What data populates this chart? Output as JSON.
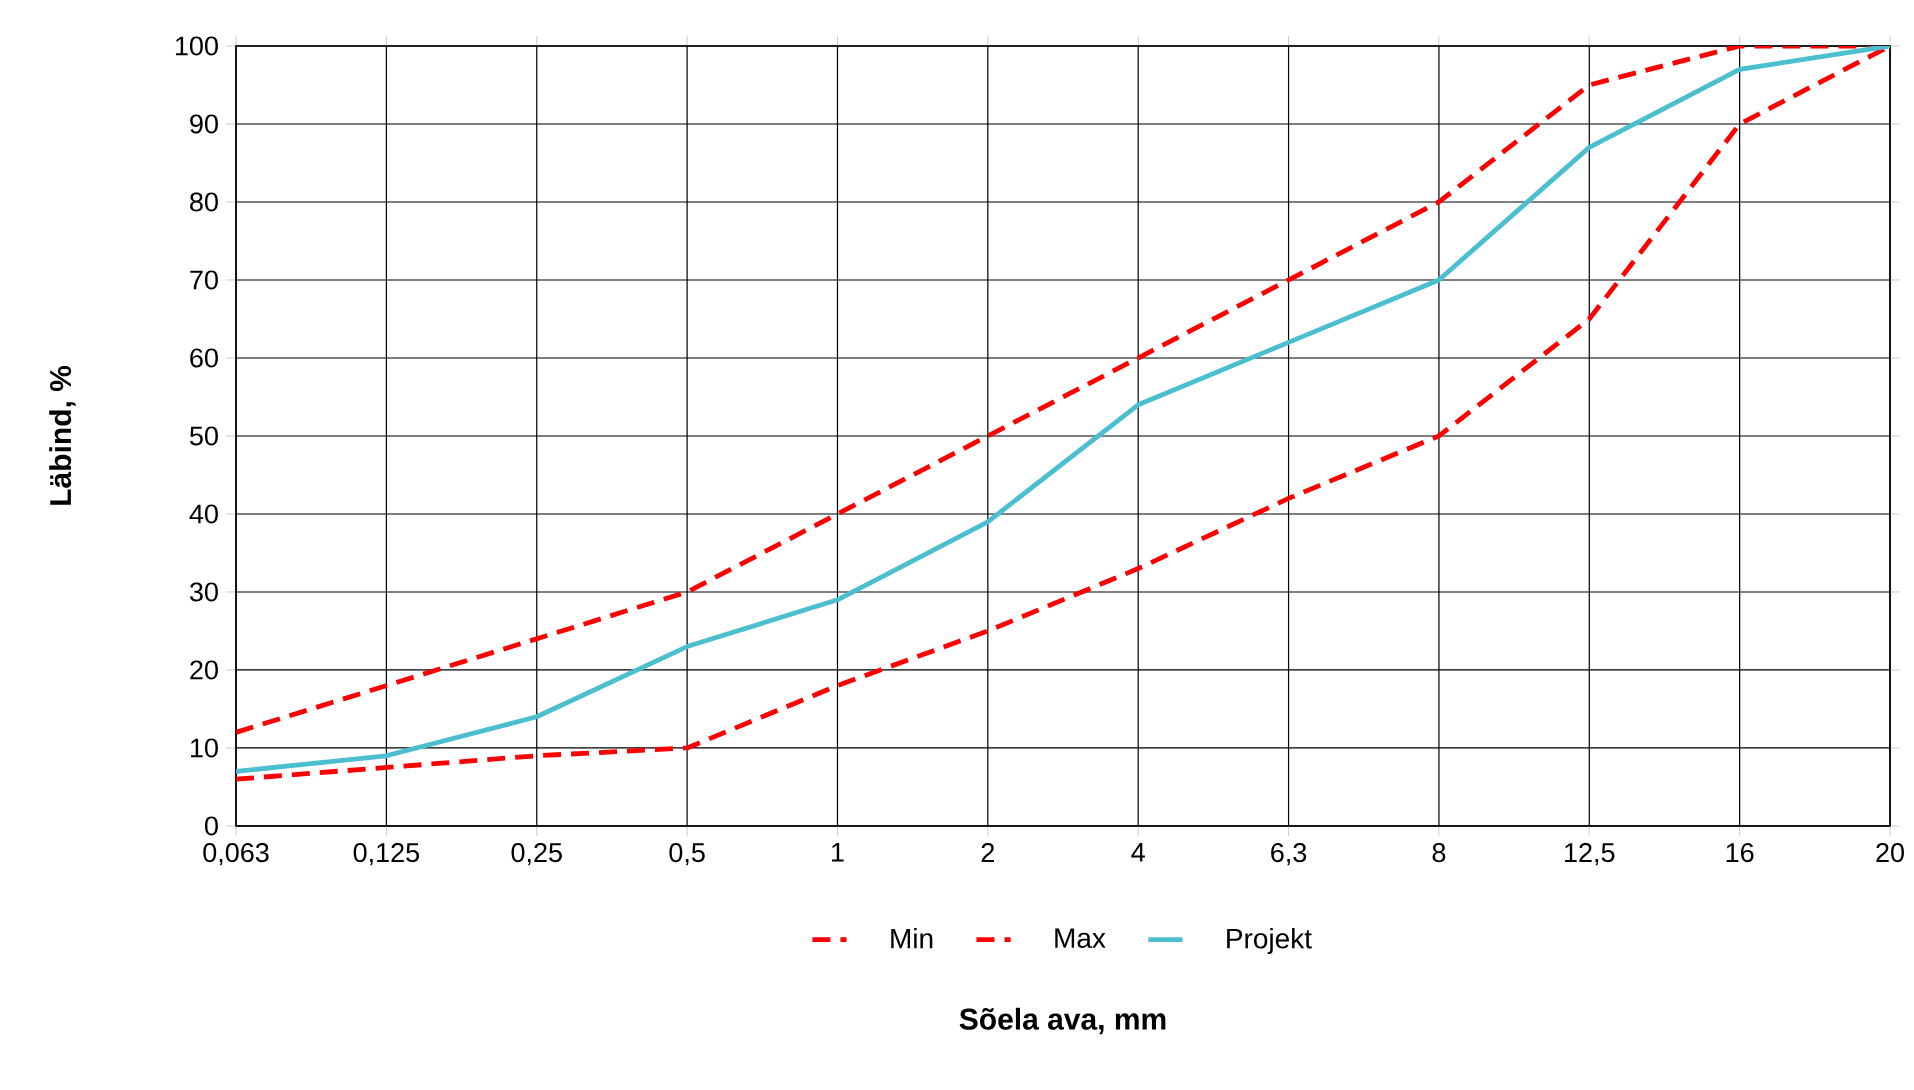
{
  "chart_data": {
    "type": "line",
    "xlabel": "Sõela ava, mm",
    "ylabel": "Läbind, %",
    "categories": [
      "0,063",
      "0,125",
      "0,25",
      "0,5",
      "1",
      "2",
      "4",
      "6,3",
      "8",
      "12,5",
      "16",
      "20"
    ],
    "series": [
      {
        "name": "Min",
        "color": "#ff0000",
        "line_style": "dashed",
        "values": [
          6,
          7.5,
          9,
          10,
          18,
          25,
          33,
          42,
          50,
          65,
          90,
          100
        ]
      },
      {
        "name": "Max",
        "color": "#ff0000",
        "line_style": "dashed",
        "values": [
          12,
          18,
          24,
          30,
          40,
          50,
          60,
          70,
          80,
          95,
          100,
          100
        ]
      },
      {
        "name": "Projekt",
        "color": "#4bbfd0",
        "line_style": "solid",
        "values": [
          7,
          9,
          14,
          23,
          29,
          39,
          54,
          62,
          70,
          87,
          97,
          100
        ]
      }
    ],
    "ylim": [
      0,
      100
    ],
    "yticks": [
      0,
      10,
      20,
      30,
      40,
      50,
      60,
      70,
      80,
      90,
      100
    ],
    "grid": true,
    "legend": "bottom",
    "marker": "none"
  }
}
